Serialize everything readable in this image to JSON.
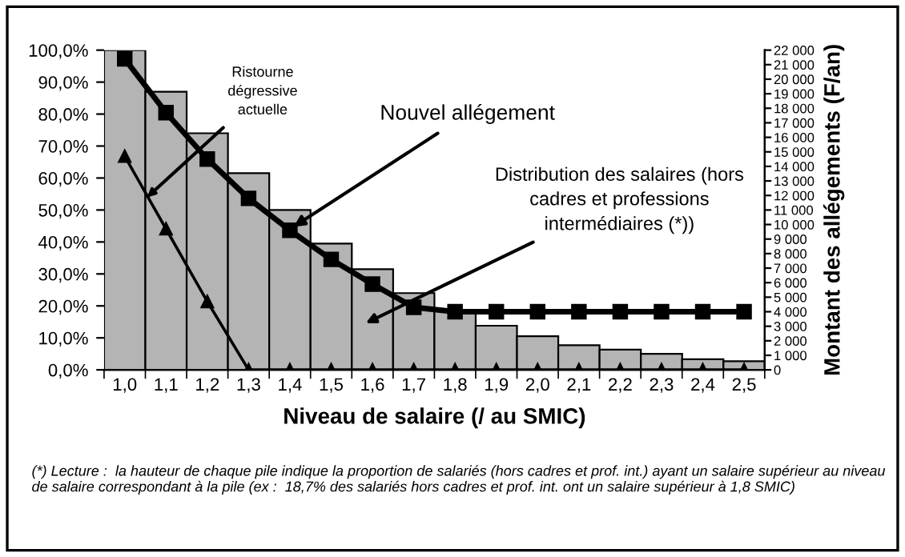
{
  "chart_data": {
    "type": "bar",
    "xlabel": "Niveau de salaire (/ au SMIC)",
    "ylabel": null,
    "y2label": "Montant des allégements (F/an)",
    "categories": [
      "1,0",
      "1,1",
      "1,2",
      "1,3",
      "1,4",
      "1,5",
      "1,6",
      "1,7",
      "1,8",
      "1,9",
      "2,0",
      "2,1",
      "2,2",
      "2,3",
      "2,4",
      "2,5"
    ],
    "series": [
      {
        "color": "#b4b4b4",
        "values": [
          100,
          87,
          74,
          61.5,
          50,
          39.5,
          31.5,
          24,
          18.7,
          13.8,
          10.5,
          7.7,
          6.3,
          5,
          3.3,
          2.7
        ]
      },
      {
        "type": "line",
        "axis": "y2",
        "color": "#000000",
        "marker": "square",
        "line_style": "solid",
        "values": [
          21400,
          17700,
          14500,
          11800,
          9600,
          7600,
          5900,
          4300,
          4000,
          4000,
          4000,
          4000,
          4000,
          4000,
          4000,
          4000
        ]
      },
      {
        "type": "line",
        "axis": "y2",
        "color": "#000000",
        "marker": "triangle",
        "line_style": "solid",
        "values": [
          14700,
          9700,
          4700,
          0,
          0,
          0,
          0,
          0,
          0,
          0,
          0,
          0,
          0,
          0,
          0,
          0
        ]
      }
    ],
    "ylim": [
      0,
      100
    ],
    "yticks": [
      {
        "value": 0,
        "label": "0,0%"
      },
      {
        "value": 10,
        "label": "10,0%"
      },
      {
        "value": 20,
        "label": "20,0%"
      },
      {
        "value": 30,
        "label": "30,0%"
      },
      {
        "value": 40,
        "label": "40,0%"
      },
      {
        "value": 50,
        "label": "50,0%"
      },
      {
        "value": 60,
        "label": "60,0%"
      },
      {
        "value": 70,
        "label": "70,0%"
      },
      {
        "value": 80,
        "label": "80,0%"
      },
      {
        "value": 90,
        "label": "90,0%"
      },
      {
        "value": 100,
        "label": "100,0%"
      }
    ],
    "y2lim": [
      0,
      22000
    ],
    "y2ticks": [
      0,
      {
        "value": 1000,
        "label": "1 000"
      },
      {
        "value": 2000,
        "label": "2 000"
      },
      {
        "value": 3000,
        "label": "3 000"
      },
      {
        "value": 4000,
        "label": "4 000"
      },
      {
        "value": 5000,
        "label": "5 000"
      },
      {
        "value": 6000,
        "label": "6 000"
      },
      {
        "value": 7000,
        "label": "7 000"
      },
      {
        "value": 8000,
        "label": "8 000"
      },
      {
        "value": 9000,
        "label": "9 000"
      },
      {
        "value": 10000,
        "label": "10 000"
      },
      {
        "value": 11000,
        "label": "11 000"
      },
      {
        "value": 12000,
        "label": "12 000"
      },
      {
        "value": 13000,
        "label": "13 000"
      },
      {
        "value": 14000,
        "label": "14 000"
      },
      {
        "value": 15000,
        "label": "15 000"
      },
      {
        "value": 16000,
        "label": "16 000"
      },
      {
        "value": 17000,
        "label": "17 000"
      },
      {
        "value": 18000,
        "label": "18 000"
      },
      {
        "value": 19000,
        "label": "19 000"
      },
      {
        "value": 20000,
        "label": "20 000"
      },
      {
        "value": 21000,
        "label": "21 000"
      },
      {
        "value": 22000,
        "label": "22 000"
      }
    ],
    "grid": false,
    "legend": false,
    "annotations": [
      "Ristourne\ndégressive\nactuelle",
      {
        "text": "Nouvel allégement",
        "x": "1,4",
        "y": 44
      },
      "Distribution des salaires (hors\ncadres et professions\nintermédiaires (*))",
      "(*) Lecture :  la hauteur de chaque pile indique la proportion de salariés (hors cadres et prof. int.) ayant un salaire supérieur au niveau de salaire correspondant à la pile (ex :  18,7% des salariés hors cadres et prof. int. ont un salaire supérieur à 1,8 SMIC)"
    ]
  }
}
